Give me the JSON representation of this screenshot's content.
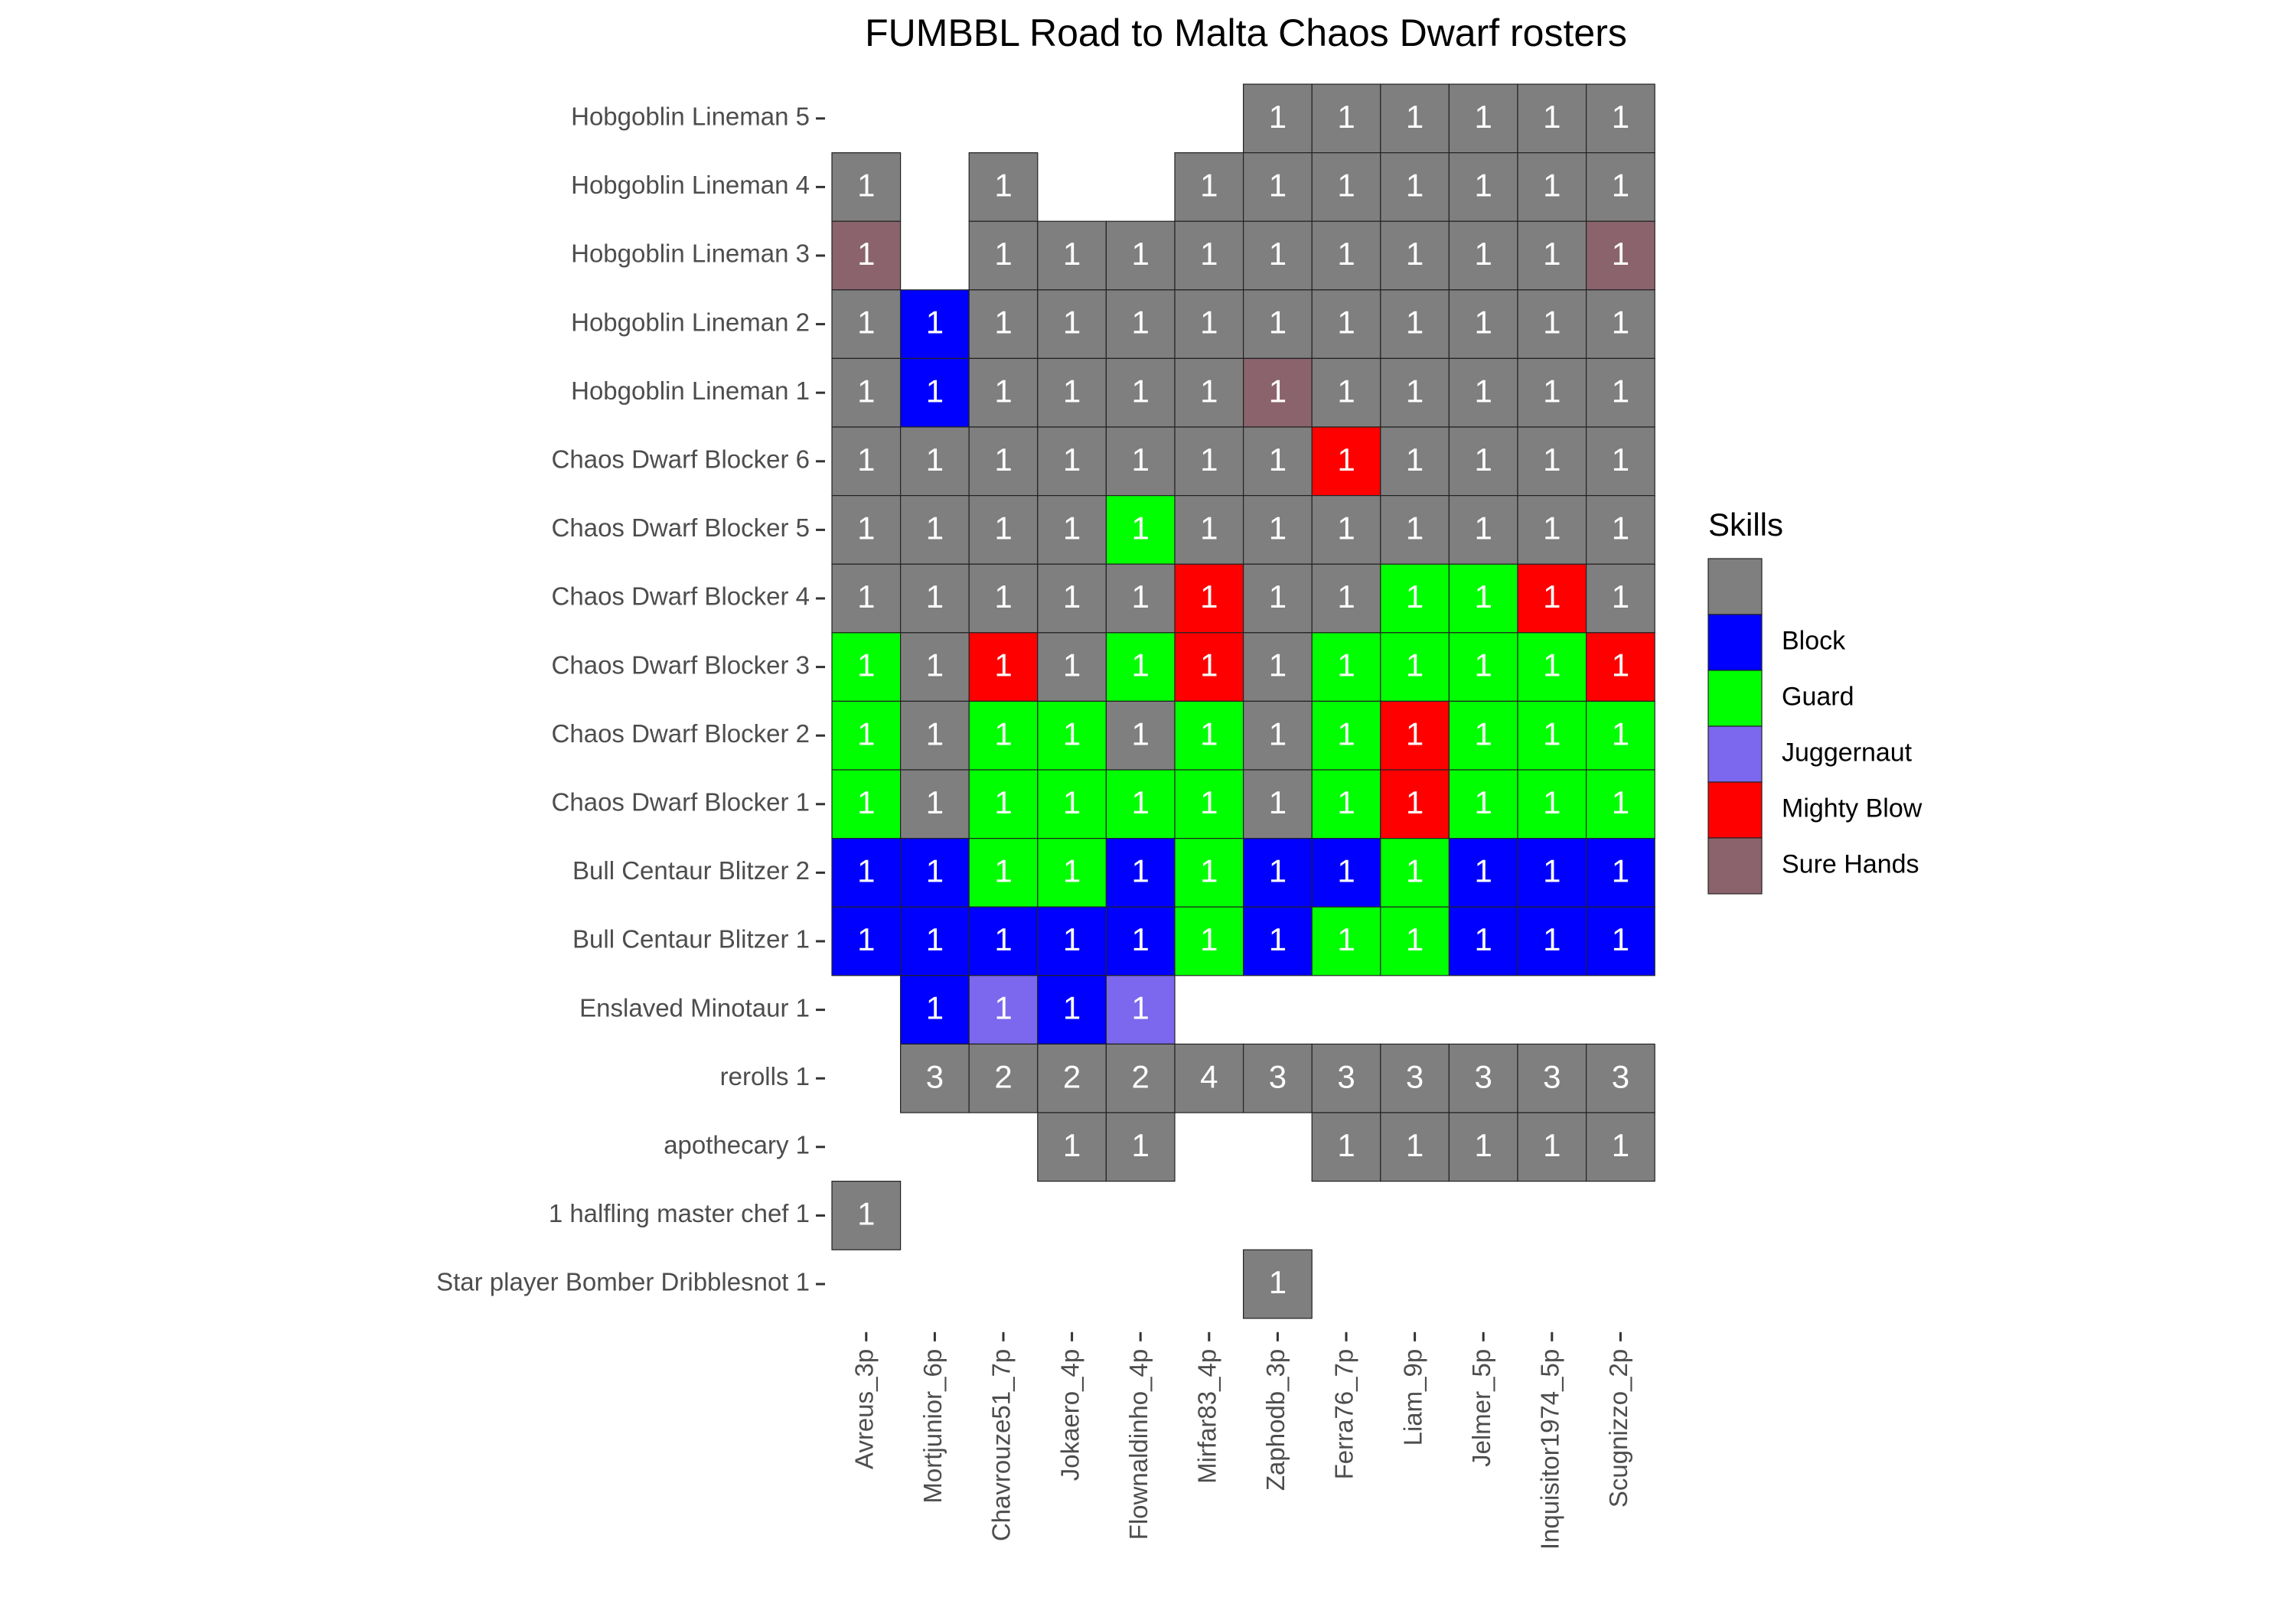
{
  "chart_data": {
    "type": "heatmap",
    "title": "FUMBBL Road to Malta Chaos Dwarf rosters",
    "xlabel": "",
    "ylabel": "",
    "legend": {
      "title": "Skills",
      "placement": "right",
      "entries": [
        {
          "label": "",
          "color": "#7f7f7f"
        },
        {
          "label": "Block",
          "color": "#0000ff"
        },
        {
          "label": "Guard",
          "color": "#00ff00"
        },
        {
          "label": "Juggernaut",
          "color": "#7b68ee"
        },
        {
          "label": "Mighty Blow",
          "color": "#ff0000"
        },
        {
          "label": "Sure Hands",
          "color": "#8b636c"
        }
      ]
    },
    "columns": [
      "Avreus_3p",
      "Mortjunior_6p",
      "Chavrouze51_7p",
      "Jokaero_4p",
      "Flownaldinho_4p",
      "Mirfar83_4p",
      "Zaphodb_3p",
      "Ferra76_7p",
      "Liam_9p",
      "Jelmer_5p",
      "Inquisitor1974_5p",
      "Scugnizzo_2p"
    ],
    "rows": [
      {
        "label": "Hobgoblin Lineman 5",
        "cells": [
          null,
          null,
          null,
          null,
          null,
          null,
          {
            "v": 1,
            "s": ""
          },
          {
            "v": 1,
            "s": ""
          },
          {
            "v": 1,
            "s": ""
          },
          {
            "v": 1,
            "s": ""
          },
          {
            "v": 1,
            "s": ""
          },
          {
            "v": 1,
            "s": ""
          }
        ]
      },
      {
        "label": "Hobgoblin Lineman 4",
        "cells": [
          {
            "v": 1,
            "s": ""
          },
          null,
          {
            "v": 1,
            "s": ""
          },
          null,
          null,
          {
            "v": 1,
            "s": ""
          },
          {
            "v": 1,
            "s": ""
          },
          {
            "v": 1,
            "s": ""
          },
          {
            "v": 1,
            "s": ""
          },
          {
            "v": 1,
            "s": ""
          },
          {
            "v": 1,
            "s": ""
          },
          {
            "v": 1,
            "s": ""
          }
        ]
      },
      {
        "label": "Hobgoblin Lineman 3",
        "cells": [
          {
            "v": 1,
            "s": "Sure Hands"
          },
          null,
          {
            "v": 1,
            "s": ""
          },
          {
            "v": 1,
            "s": ""
          },
          {
            "v": 1,
            "s": ""
          },
          {
            "v": 1,
            "s": ""
          },
          {
            "v": 1,
            "s": ""
          },
          {
            "v": 1,
            "s": ""
          },
          {
            "v": 1,
            "s": ""
          },
          {
            "v": 1,
            "s": ""
          },
          {
            "v": 1,
            "s": ""
          },
          {
            "v": 1,
            "s": "Sure Hands"
          }
        ]
      },
      {
        "label": "Hobgoblin Lineman 2",
        "cells": [
          {
            "v": 1,
            "s": ""
          },
          {
            "v": 1,
            "s": "Block"
          },
          {
            "v": 1,
            "s": ""
          },
          {
            "v": 1,
            "s": ""
          },
          {
            "v": 1,
            "s": ""
          },
          {
            "v": 1,
            "s": ""
          },
          {
            "v": 1,
            "s": ""
          },
          {
            "v": 1,
            "s": ""
          },
          {
            "v": 1,
            "s": ""
          },
          {
            "v": 1,
            "s": ""
          },
          {
            "v": 1,
            "s": ""
          },
          {
            "v": 1,
            "s": ""
          }
        ]
      },
      {
        "label": "Hobgoblin Lineman 1",
        "cells": [
          {
            "v": 1,
            "s": ""
          },
          {
            "v": 1,
            "s": "Block"
          },
          {
            "v": 1,
            "s": ""
          },
          {
            "v": 1,
            "s": ""
          },
          {
            "v": 1,
            "s": ""
          },
          {
            "v": 1,
            "s": ""
          },
          {
            "v": 1,
            "s": "Sure Hands"
          },
          {
            "v": 1,
            "s": ""
          },
          {
            "v": 1,
            "s": ""
          },
          {
            "v": 1,
            "s": ""
          },
          {
            "v": 1,
            "s": ""
          },
          {
            "v": 1,
            "s": ""
          }
        ]
      },
      {
        "label": "Chaos Dwarf Blocker 6",
        "cells": [
          {
            "v": 1,
            "s": ""
          },
          {
            "v": 1,
            "s": ""
          },
          {
            "v": 1,
            "s": ""
          },
          {
            "v": 1,
            "s": ""
          },
          {
            "v": 1,
            "s": ""
          },
          {
            "v": 1,
            "s": ""
          },
          {
            "v": 1,
            "s": ""
          },
          {
            "v": 1,
            "s": "Mighty Blow"
          },
          {
            "v": 1,
            "s": ""
          },
          {
            "v": 1,
            "s": ""
          },
          {
            "v": 1,
            "s": ""
          },
          {
            "v": 1,
            "s": ""
          }
        ]
      },
      {
        "label": "Chaos Dwarf Blocker 5",
        "cells": [
          {
            "v": 1,
            "s": ""
          },
          {
            "v": 1,
            "s": ""
          },
          {
            "v": 1,
            "s": ""
          },
          {
            "v": 1,
            "s": ""
          },
          {
            "v": 1,
            "s": "Guard"
          },
          {
            "v": 1,
            "s": ""
          },
          {
            "v": 1,
            "s": ""
          },
          {
            "v": 1,
            "s": ""
          },
          {
            "v": 1,
            "s": ""
          },
          {
            "v": 1,
            "s": ""
          },
          {
            "v": 1,
            "s": ""
          },
          {
            "v": 1,
            "s": ""
          }
        ]
      },
      {
        "label": "Chaos Dwarf Blocker 4",
        "cells": [
          {
            "v": 1,
            "s": ""
          },
          {
            "v": 1,
            "s": ""
          },
          {
            "v": 1,
            "s": ""
          },
          {
            "v": 1,
            "s": ""
          },
          {
            "v": 1,
            "s": ""
          },
          {
            "v": 1,
            "s": "Mighty Blow"
          },
          {
            "v": 1,
            "s": ""
          },
          {
            "v": 1,
            "s": ""
          },
          {
            "v": 1,
            "s": "Guard"
          },
          {
            "v": 1,
            "s": "Guard"
          },
          {
            "v": 1,
            "s": "Mighty Blow"
          },
          {
            "v": 1,
            "s": ""
          }
        ]
      },
      {
        "label": "Chaos Dwarf Blocker 3",
        "cells": [
          {
            "v": 1,
            "s": "Guard"
          },
          {
            "v": 1,
            "s": ""
          },
          {
            "v": 1,
            "s": "Mighty Blow"
          },
          {
            "v": 1,
            "s": ""
          },
          {
            "v": 1,
            "s": "Guard"
          },
          {
            "v": 1,
            "s": "Mighty Blow"
          },
          {
            "v": 1,
            "s": ""
          },
          {
            "v": 1,
            "s": "Guard"
          },
          {
            "v": 1,
            "s": "Guard"
          },
          {
            "v": 1,
            "s": "Guard"
          },
          {
            "v": 1,
            "s": "Guard"
          },
          {
            "v": 1,
            "s": "Mighty Blow"
          }
        ]
      },
      {
        "label": "Chaos Dwarf Blocker 2",
        "cells": [
          {
            "v": 1,
            "s": "Guard"
          },
          {
            "v": 1,
            "s": ""
          },
          {
            "v": 1,
            "s": "Guard"
          },
          {
            "v": 1,
            "s": "Guard"
          },
          {
            "v": 1,
            "s": ""
          },
          {
            "v": 1,
            "s": "Guard"
          },
          {
            "v": 1,
            "s": ""
          },
          {
            "v": 1,
            "s": "Guard"
          },
          {
            "v": 1,
            "s": "Mighty Blow"
          },
          {
            "v": 1,
            "s": "Guard"
          },
          {
            "v": 1,
            "s": "Guard"
          },
          {
            "v": 1,
            "s": "Guard"
          }
        ]
      },
      {
        "label": "Chaos Dwarf Blocker 1",
        "cells": [
          {
            "v": 1,
            "s": "Guard"
          },
          {
            "v": 1,
            "s": ""
          },
          {
            "v": 1,
            "s": "Guard"
          },
          {
            "v": 1,
            "s": "Guard"
          },
          {
            "v": 1,
            "s": "Guard"
          },
          {
            "v": 1,
            "s": "Guard"
          },
          {
            "v": 1,
            "s": ""
          },
          {
            "v": 1,
            "s": "Guard"
          },
          {
            "v": 1,
            "s": "Mighty Blow"
          },
          {
            "v": 1,
            "s": "Guard"
          },
          {
            "v": 1,
            "s": "Guard"
          },
          {
            "v": 1,
            "s": "Guard"
          }
        ]
      },
      {
        "label": "Bull Centaur Blitzer 2",
        "cells": [
          {
            "v": 1,
            "s": "Block"
          },
          {
            "v": 1,
            "s": "Block"
          },
          {
            "v": 1,
            "s": "Guard"
          },
          {
            "v": 1,
            "s": "Guard"
          },
          {
            "v": 1,
            "s": "Block"
          },
          {
            "v": 1,
            "s": "Guard"
          },
          {
            "v": 1,
            "s": "Block"
          },
          {
            "v": 1,
            "s": "Block"
          },
          {
            "v": 1,
            "s": "Guard"
          },
          {
            "v": 1,
            "s": "Block"
          },
          {
            "v": 1,
            "s": "Block"
          },
          {
            "v": 1,
            "s": "Block"
          }
        ]
      },
      {
        "label": "Bull Centaur Blitzer 1",
        "cells": [
          {
            "v": 1,
            "s": "Block"
          },
          {
            "v": 1,
            "s": "Block"
          },
          {
            "v": 1,
            "s": "Block"
          },
          {
            "v": 1,
            "s": "Block"
          },
          {
            "v": 1,
            "s": "Block"
          },
          {
            "v": 1,
            "s": "Guard"
          },
          {
            "v": 1,
            "s": "Block"
          },
          {
            "v": 1,
            "s": "Guard"
          },
          {
            "v": 1,
            "s": "Guard"
          },
          {
            "v": 1,
            "s": "Block"
          },
          {
            "v": 1,
            "s": "Block"
          },
          {
            "v": 1,
            "s": "Block"
          }
        ]
      },
      {
        "label": "Enslaved Minotaur 1",
        "cells": [
          null,
          {
            "v": 1,
            "s": "Block"
          },
          {
            "v": 1,
            "s": "Juggernaut"
          },
          {
            "v": 1,
            "s": "Block"
          },
          {
            "v": 1,
            "s": "Juggernaut"
          },
          null,
          null,
          null,
          null,
          null,
          null,
          null
        ]
      },
      {
        "label": "rerolls 1",
        "cells": [
          null,
          {
            "v": 3,
            "s": ""
          },
          {
            "v": 2,
            "s": ""
          },
          {
            "v": 2,
            "s": ""
          },
          {
            "v": 2,
            "s": ""
          },
          {
            "v": 4,
            "s": ""
          },
          {
            "v": 3,
            "s": ""
          },
          {
            "v": 3,
            "s": ""
          },
          {
            "v": 3,
            "s": ""
          },
          {
            "v": 3,
            "s": ""
          },
          {
            "v": 3,
            "s": ""
          },
          {
            "v": 3,
            "s": ""
          }
        ]
      },
      {
        "label": "apothecary 1",
        "cells": [
          null,
          null,
          null,
          {
            "v": 1,
            "s": ""
          },
          {
            "v": 1,
            "s": ""
          },
          null,
          null,
          {
            "v": 1,
            "s": ""
          },
          {
            "v": 1,
            "s": ""
          },
          {
            "v": 1,
            "s": ""
          },
          {
            "v": 1,
            "s": ""
          },
          {
            "v": 1,
            "s": ""
          }
        ]
      },
      {
        "label": "1 halfling master chef 1",
        "cells": [
          {
            "v": 1,
            "s": ""
          },
          null,
          null,
          null,
          null,
          null,
          null,
          null,
          null,
          null,
          null,
          null
        ]
      },
      {
        "label": "Star player Bomber Dribblesnot 1",
        "cells": [
          null,
          null,
          null,
          null,
          null,
          null,
          {
            "v": 1,
            "s": ""
          },
          null,
          null,
          null,
          null,
          null
        ]
      }
    ]
  }
}
